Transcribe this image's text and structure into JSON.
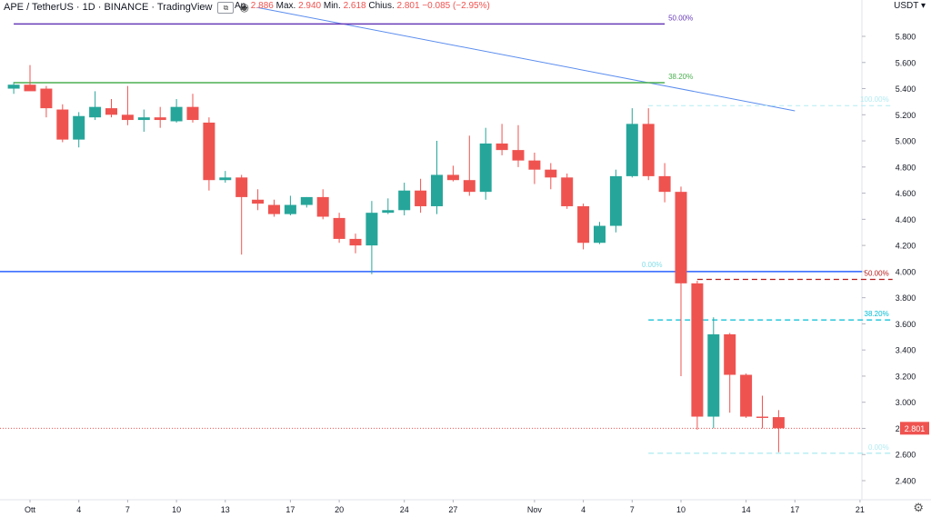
{
  "header": {
    "symbol_line": "APE / TetherUS · 1D · BINANCE · TradingView",
    "ohlc_prefix": "Ap.",
    "open": "2.886",
    "high_label": "Max.",
    "high": "2.940",
    "low_label": "Min.",
    "low": "2.618",
    "close_label": "Chius.",
    "close": "2.801",
    "change": "−0.085 (−2.95%)"
  },
  "axis": {
    "unit": "USDT",
    "last_price_label": "2.801"
  },
  "colors": {
    "up": "#26a69a",
    "down": "#ef5350",
    "fib_purple": "#673ab7",
    "fib_green": "#4caf50",
    "support_blue": "#2962ff",
    "trendline": "#5b8def",
    "fib_cyan": "#00bcd4",
    "fib_red": "#b71c1c"
  },
  "chart_data": {
    "type": "candlestick",
    "title": "APE / TetherUS · 1D · BINANCE",
    "ylabel": "USDT",
    "ylim": [
      2.22,
      6.0
    ],
    "y_ticks": [
      2.4,
      2.6,
      2.8,
      3.0,
      3.2,
      3.4,
      3.6,
      3.8,
      4.0,
      4.2,
      4.4,
      4.6,
      4.8,
      5.0,
      5.2,
      5.4,
      5.6,
      5.8
    ],
    "x_ticks": [
      {
        "day": 0,
        "label": "Ott"
      },
      {
        "day": 3,
        "label": "4"
      },
      {
        "day": 6,
        "label": "7"
      },
      {
        "day": 9,
        "label": "10"
      },
      {
        "day": 12,
        "label": "13"
      },
      {
        "day": 16,
        "label": "17"
      },
      {
        "day": 19,
        "label": "20"
      },
      {
        "day": 23,
        "label": "24"
      },
      {
        "day": 26,
        "label": "27"
      },
      {
        "day": 31,
        "label": "Nov"
      },
      {
        "day": 34,
        "label": "4"
      },
      {
        "day": 37,
        "label": "7"
      },
      {
        "day": 40,
        "label": "10"
      },
      {
        "day": 44,
        "label": "14"
      },
      {
        "day": 47,
        "label": "17"
      },
      {
        "day": 51,
        "label": "21"
      }
    ],
    "candles": [
      {
        "o": 5.4,
        "h": 5.45,
        "l": 5.36,
        "c": 5.43
      },
      {
        "o": 5.43,
        "h": 5.58,
        "l": 5.4,
        "c": 5.38
      },
      {
        "o": 5.4,
        "h": 5.42,
        "l": 5.18,
        "c": 5.25
      },
      {
        "o": 5.24,
        "h": 5.28,
        "l": 4.99,
        "c": 5.01
      },
      {
        "o": 5.01,
        "h": 5.22,
        "l": 4.95,
        "c": 5.19
      },
      {
        "o": 5.18,
        "h": 5.38,
        "l": 5.16,
        "c": 5.26
      },
      {
        "o": 5.25,
        "h": 5.32,
        "l": 5.18,
        "c": 5.2
      },
      {
        "o": 5.2,
        "h": 5.42,
        "l": 5.12,
        "c": 5.16
      },
      {
        "o": 5.16,
        "h": 5.24,
        "l": 5.07,
        "c": 5.18
      },
      {
        "o": 5.18,
        "h": 5.26,
        "l": 5.1,
        "c": 5.16
      },
      {
        "o": 5.15,
        "h": 5.32,
        "l": 5.14,
        "c": 5.26
      },
      {
        "o": 5.26,
        "h": 5.36,
        "l": 5.14,
        "c": 5.16
      },
      {
        "o": 5.14,
        "h": 5.18,
        "l": 4.62,
        "c": 4.7
      },
      {
        "o": 4.7,
        "h": 4.77,
        "l": 4.68,
        "c": 4.72
      },
      {
        "o": 4.72,
        "h": 4.74,
        "l": 4.13,
        "c": 4.57
      },
      {
        "o": 4.55,
        "h": 4.63,
        "l": 4.47,
        "c": 4.52
      },
      {
        "o": 4.51,
        "h": 4.55,
        "l": 4.42,
        "c": 4.44
      },
      {
        "o": 4.44,
        "h": 4.58,
        "l": 4.43,
        "c": 4.51
      },
      {
        "o": 4.51,
        "h": 4.57,
        "l": 4.49,
        "c": 4.57
      },
      {
        "o": 4.57,
        "h": 4.63,
        "l": 4.4,
        "c": 4.42
      },
      {
        "o": 4.41,
        "h": 4.45,
        "l": 4.22,
        "c": 4.25
      },
      {
        "o": 4.25,
        "h": 4.29,
        "l": 4.14,
        "c": 4.2
      },
      {
        "o": 4.2,
        "h": 4.54,
        "l": 3.98,
        "c": 4.45
      },
      {
        "o": 4.45,
        "h": 4.56,
        "l": 4.44,
        "c": 4.47
      },
      {
        "o": 4.47,
        "h": 4.68,
        "l": 4.43,
        "c": 4.62
      },
      {
        "o": 4.62,
        "h": 4.71,
        "l": 4.45,
        "c": 4.5
      },
      {
        "o": 4.5,
        "h": 5.0,
        "l": 4.44,
        "c": 4.74
      },
      {
        "o": 4.74,
        "h": 4.81,
        "l": 4.69,
        "c": 4.7
      },
      {
        "o": 4.7,
        "h": 5.04,
        "l": 4.58,
        "c": 4.61
      },
      {
        "o": 4.61,
        "h": 5.1,
        "l": 4.55,
        "c": 4.98
      },
      {
        "o": 4.98,
        "h": 5.13,
        "l": 4.89,
        "c": 4.93
      },
      {
        "o": 4.93,
        "h": 5.12,
        "l": 4.8,
        "c": 4.85
      },
      {
        "o": 4.85,
        "h": 4.91,
        "l": 4.67,
        "c": 4.78
      },
      {
        "o": 4.78,
        "h": 4.83,
        "l": 4.63,
        "c": 4.72
      },
      {
        "o": 4.72,
        "h": 4.75,
        "l": 4.48,
        "c": 4.5
      },
      {
        "o": 4.5,
        "h": 4.52,
        "l": 4.17,
        "c": 4.22
      },
      {
        "o": 4.22,
        "h": 4.38,
        "l": 4.21,
        "c": 4.35
      },
      {
        "o": 4.35,
        "h": 4.78,
        "l": 4.3,
        "c": 4.73
      },
      {
        "o": 4.73,
        "h": 5.25,
        "l": 4.72,
        "c": 5.13
      },
      {
        "o": 5.13,
        "h": 5.25,
        "l": 4.7,
        "c": 4.73
      },
      {
        "o": 4.73,
        "h": 4.83,
        "l": 4.53,
        "c": 4.61
      },
      {
        "o": 4.61,
        "h": 4.65,
        "l": 3.2,
        "c": 3.91
      },
      {
        "o": 3.91,
        "h": 3.93,
        "l": 2.79,
        "c": 2.89
      },
      {
        "o": 2.89,
        "h": 3.65,
        "l": 2.8,
        "c": 3.52
      },
      {
        "o": 3.52,
        "h": 3.53,
        "l": 2.92,
        "c": 3.21
      },
      {
        "o": 3.21,
        "h": 3.22,
        "l": 2.88,
        "c": 2.89
      },
      {
        "o": 2.89,
        "h": 3.05,
        "l": 2.8,
        "c": 2.88
      },
      {
        "o": 2.886,
        "h": 2.94,
        "l": 2.618,
        "c": 2.801
      }
    ],
    "drawings": {
      "hlines": [
        {
          "name": "support-4",
          "price": 4.0,
          "label": "0.00%",
          "label_day": 38,
          "color": "#2962ff"
        }
      ],
      "fib_levels_upper": [
        {
          "name": "fib-50",
          "price": 5.895,
          "label": "50.00%",
          "color": "#673ab7",
          "start_day": -1,
          "end_day": 39
        },
        {
          "name": "fib-38",
          "price": 5.445,
          "label": "38.20%",
          "color": "#4caf50",
          "start_day": -1,
          "end_day": 39
        },
        {
          "name": "fib-100",
          "price": 5.27,
          "label": "100.00%",
          "color": "#b2ebf2",
          "start_day": 38,
          "end_day": 53
        }
      ],
      "fib_levels_lower": [
        {
          "name": "fib-50-low",
          "price": 3.94,
          "label": "50.00%",
          "color": "#b71c1c",
          "start_day": 41,
          "end_day": 53
        },
        {
          "name": "fib-38-low",
          "price": 3.63,
          "label": "38.20%",
          "color": "#00bcd4",
          "start_day": 38,
          "end_day": 53
        },
        {
          "name": "fib-0-low",
          "price": 2.61,
          "label": "0.00%",
          "color": "#b2ebf2",
          "start_day": 38,
          "end_day": 53
        }
      ],
      "trendline": {
        "start_day": 14,
        "start_price": 6.02,
        "end_day": 47,
        "end_price": 5.23
      }
    }
  }
}
